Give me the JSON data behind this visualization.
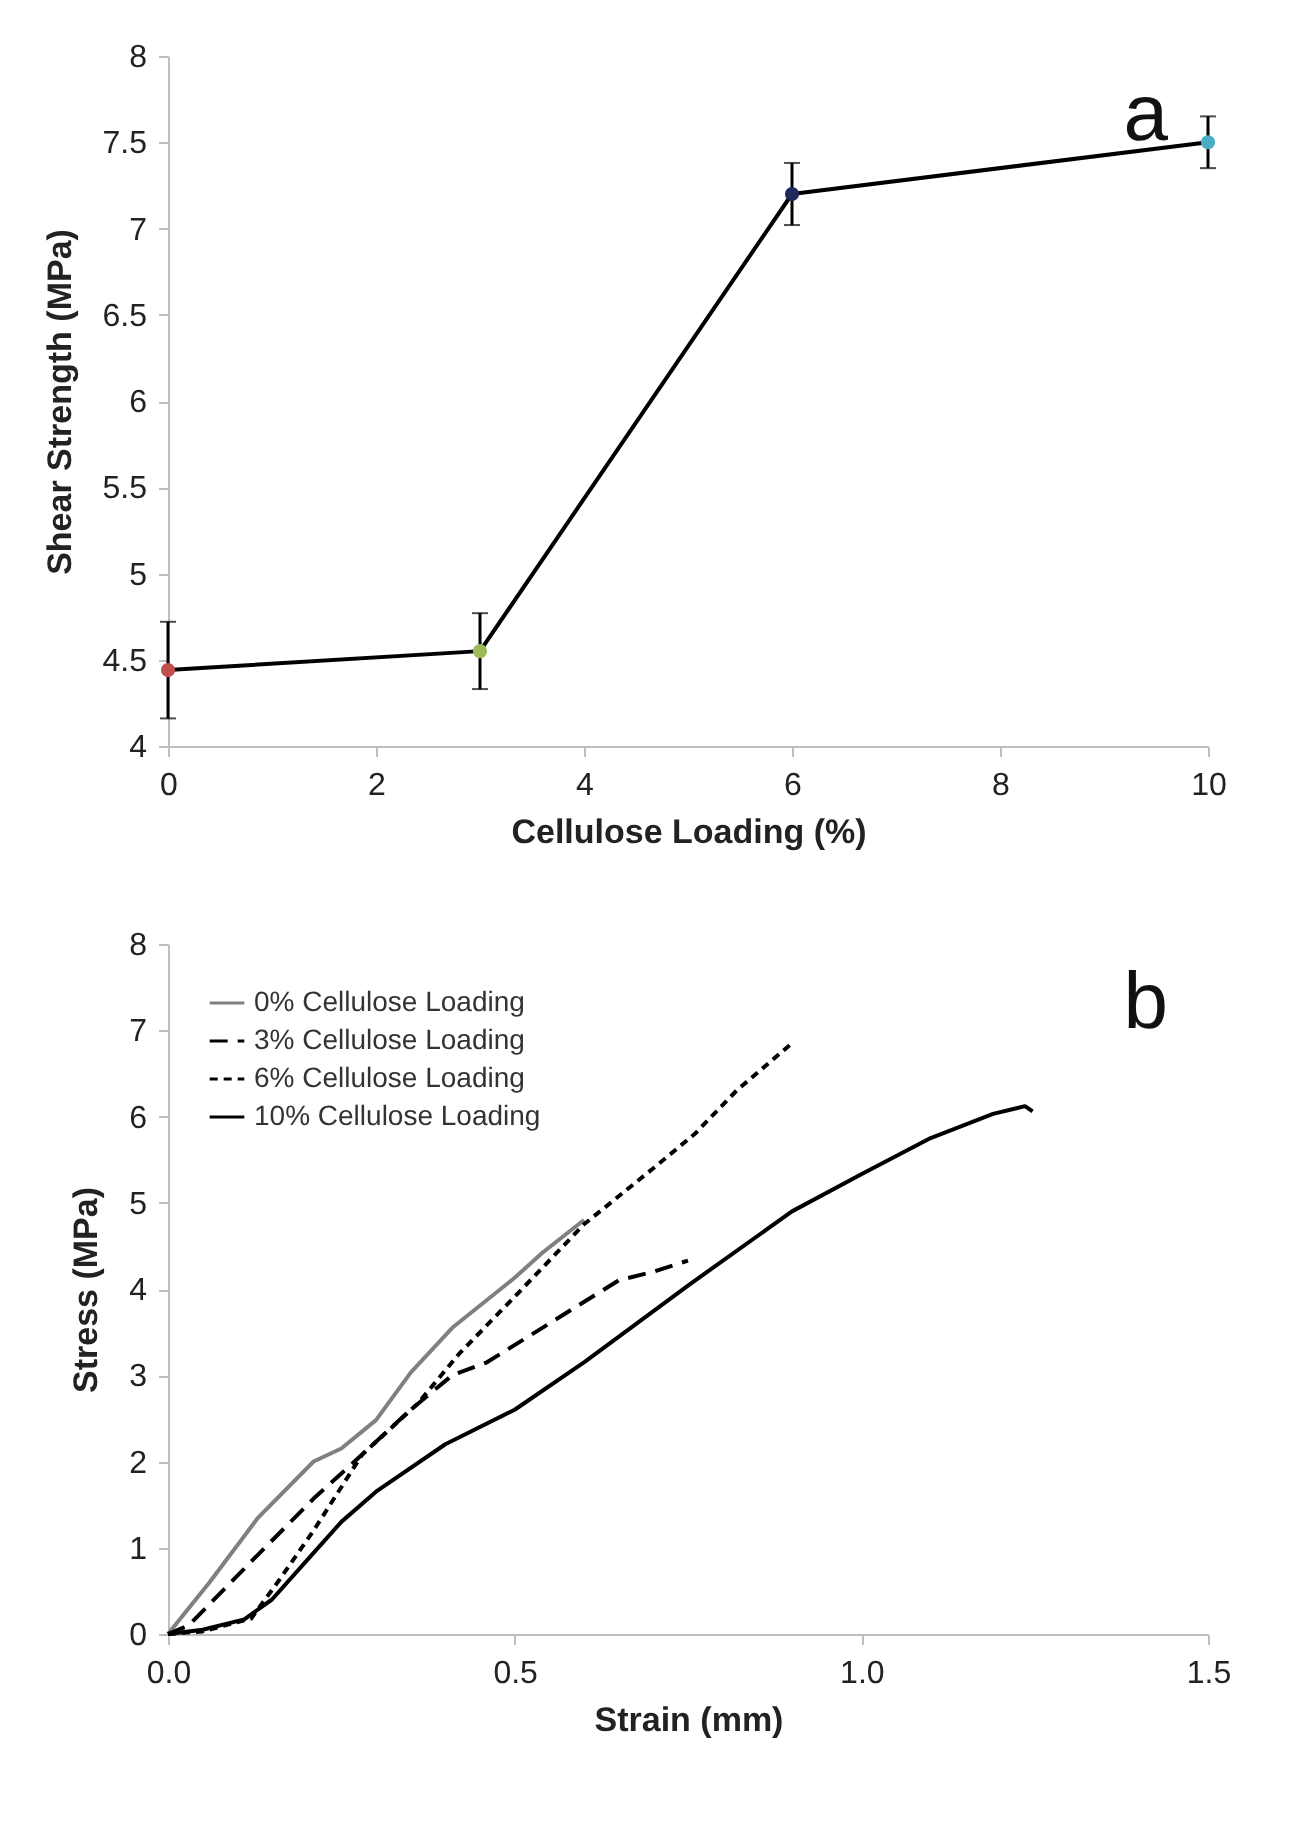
{
  "chart_data": [
    {
      "type": "line",
      "xlabel": "Cellulose Loading (%)",
      "ylabel": "Shear Strength (MPa)",
      "annotations": [
        "a"
      ],
      "x": [
        0,
        3,
        6,
        10
      ],
      "series": [
        {
          "color": "#000000",
          "values": [
            4.44,
            4.55,
            7.2,
            7.5
          ],
          "errors": [
            0.28,
            0.22,
            0.18,
            0.15
          ]
        }
      ],
      "colors": [
        "#c0504d",
        "#9bbb59",
        "#1f2a5c",
        "#4bacc6"
      ],
      "marker": "circle",
      "grid": false,
      "xlim": [
        0,
        10
      ],
      "xticks": [
        0,
        2,
        4,
        6,
        8,
        10
      ],
      "ylim": [
        4,
        8
      ],
      "yticks": [
        4,
        4.5,
        5,
        5.5,
        6,
        6.5,
        7,
        7.5,
        8
      ]
    },
    {
      "type": "line",
      "xlabel": "Strain (mm)",
      "ylabel": "Stress (MPa)",
      "annotations": [
        "b"
      ],
      "legend": "top left",
      "grid": false,
      "series": [
        {
          "name": "0% Cellulose Loading",
          "color": "#808080",
          "line_style": "solid",
          "x": [
            0,
            0.06,
            0.13,
            0.21,
            0.25,
            0.3,
            0.35,
            0.41,
            0.5,
            0.54,
            0.6
          ],
          "values": [
            0,
            0.6,
            1.35,
            2.0,
            2.15,
            2.48,
            3.03,
            3.55,
            4.13,
            4.42,
            4.8
          ]
        },
        {
          "name": "3% Cellulose Loading",
          "color": "#000000",
          "line_style": "dashed",
          "x": [
            0,
            0.03,
            0.12,
            0.21,
            0.28,
            0.35,
            0.41,
            0.46,
            0.52,
            0.59,
            0.65,
            0.7,
            0.75
          ],
          "values": [
            0,
            0.1,
            0.84,
            1.57,
            2.08,
            2.6,
            3.0,
            3.15,
            3.45,
            3.8,
            4.1,
            4.2,
            4.33
          ]
        },
        {
          "name": "6% Cellulose Loading",
          "color": "#000000",
          "line_style": "dotted",
          "x": [
            0,
            0.05,
            0.12,
            0.16,
            0.21,
            0.28,
            0.36,
            0.42,
            0.5,
            0.6,
            0.7,
            0.76,
            0.82,
            0.9
          ],
          "values": [
            0,
            0.03,
            0.18,
            0.62,
            1.2,
            2.08,
            2.67,
            3.25,
            3.91,
            4.75,
            5.4,
            5.8,
            6.3,
            6.85
          ]
        },
        {
          "name": "10% Cellulose Loading",
          "color": "#000000",
          "line_style": "solid",
          "x": [
            0,
            0.05,
            0.11,
            0.15,
            0.2,
            0.25,
            0.3,
            0.4,
            0.5,
            0.6,
            0.75,
            0.9,
            1.0,
            1.1,
            1.19,
            1.236,
            1.247
          ],
          "values": [
            0,
            0.05,
            0.17,
            0.4,
            0.85,
            1.3,
            1.65,
            2.2,
            2.6,
            3.15,
            4.04,
            4.9,
            5.33,
            5.75,
            6.03,
            6.12,
            6.06
          ]
        }
      ],
      "xlim": [
        0,
        1.5
      ],
      "xticks": [
        {
          "value": 0,
          "label": "0.0"
        },
        {
          "value": 0.5,
          "label": "0.5"
        },
        {
          "value": 1,
          "label": "1.0"
        },
        {
          "value": 1.5,
          "label": "1.5"
        }
      ],
      "ylim": [
        0,
        8
      ],
      "yticks": [
        0,
        1,
        2,
        3,
        4,
        5,
        6,
        7,
        8
      ]
    }
  ]
}
